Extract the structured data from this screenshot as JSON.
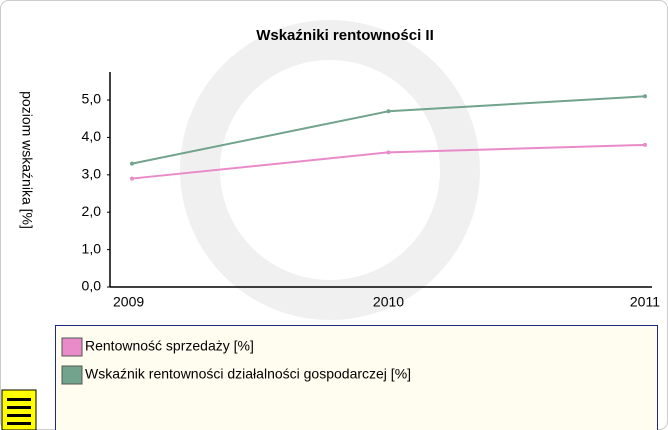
{
  "chart_data": {
    "type": "line",
    "title": "Wskaźniki rentowności II",
    "y_label": "poziom wskaźnika [%]",
    "categories": [
      "2009",
      "2010",
      "2011"
    ],
    "series": [
      {
        "name": "Rentowność sprzedaży [%]",
        "color": "#e98ac9",
        "values": [
          2.9,
          3.6,
          3.8
        ]
      },
      {
        "name": "Wskaźnik rentowności działalności gospodarczej [%]",
        "color": "#72a38d",
        "values": [
          3.3,
          4.7,
          5.1
        ]
      }
    ],
    "ylim": [
      0,
      5.75
    ],
    "yticks": [
      {
        "value": 0,
        "label": "0,0"
      },
      {
        "value": 1,
        "label": "1,0"
      },
      {
        "value": 2,
        "label": "2,0"
      },
      {
        "value": 3,
        "label": "3,0"
      },
      {
        "value": 4,
        "label": "4,0"
      },
      {
        "value": 5,
        "label": "5,0"
      }
    ],
    "grid": false
  }
}
